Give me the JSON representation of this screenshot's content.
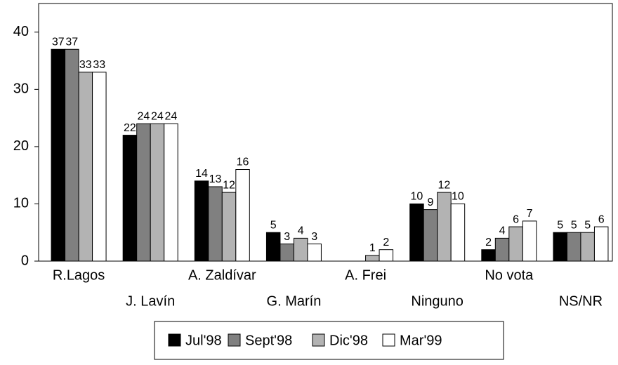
{
  "chart_data": {
    "type": "bar",
    "categories": [
      "R.Lagos",
      "J. Lavín",
      "A. Zaldívar",
      "G. Marín",
      "A. Frei",
      "Ninguno",
      "No vota",
      "NS/NR"
    ],
    "series": [
      {
        "name": "Jul'98",
        "color": "#000000",
        "values": [
          37,
          22,
          14,
          5,
          null,
          10,
          2,
          5
        ]
      },
      {
        "name": "Sept'98",
        "color": "#808080",
        "values": [
          37,
          24,
          13,
          3,
          null,
          9,
          4,
          5
        ]
      },
      {
        "name": "Dic'98",
        "color": "#b3b3b3",
        "values": [
          33,
          24,
          12,
          4,
          1,
          12,
          6,
          5
        ]
      },
      {
        "name": "Mar'99",
        "color": "#ffffff",
        "values": [
          33,
          24,
          16,
          3,
          2,
          10,
          7,
          6
        ]
      }
    ],
    "ylim": [
      0,
      45
    ],
    "yticks": [
      0,
      10,
      20,
      30,
      40
    ],
    "legend": "bottom"
  }
}
